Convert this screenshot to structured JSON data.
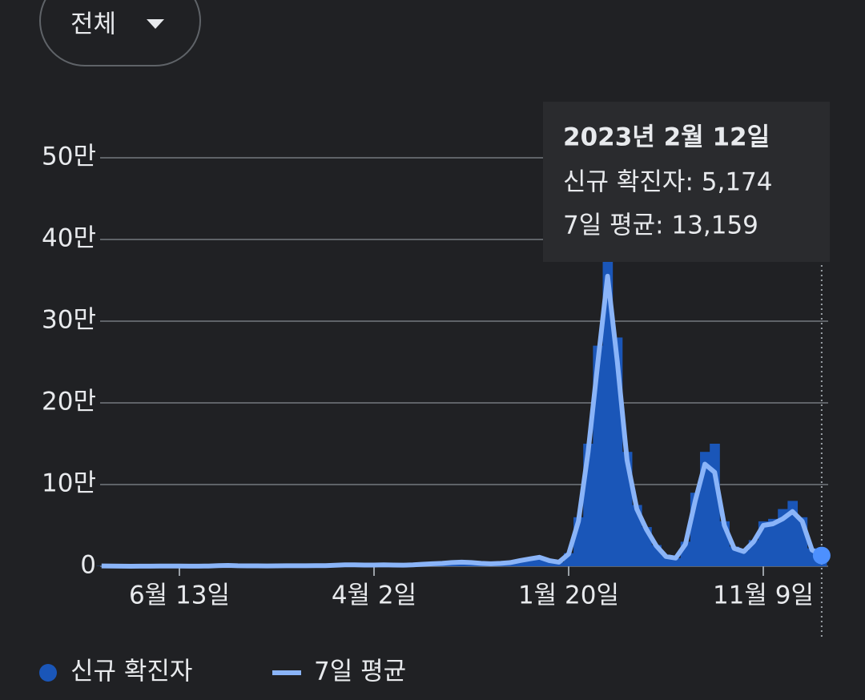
{
  "filter": {
    "label": "전체"
  },
  "chart_data": {
    "type": "bar-line",
    "categories": [
      null,
      null,
      null,
      null,
      null,
      null,
      null,
      null,
      "6월 13일",
      null,
      null,
      null,
      null,
      null,
      null,
      null,
      null,
      null,
      null,
      null,
      null,
      null,
      null,
      null,
      null,
      null,
      null,
      null,
      "4월 2일",
      null,
      null,
      null,
      null,
      null,
      null,
      null,
      null,
      null,
      null,
      null,
      null,
      null,
      null,
      null,
      null,
      null,
      null,
      null,
      "1월 20일",
      null,
      null,
      null,
      null,
      null,
      null,
      null,
      null,
      null,
      null,
      null,
      null,
      null,
      null,
      null,
      null,
      null,
      null,
      null,
      "11월 9일",
      null,
      null,
      null,
      null,
      null,
      null
    ],
    "series": [
      {
        "name": "신규 확진자",
        "color": "#1a56b8",
        "values": [
          400,
          200,
          60,
          40,
          50,
          50,
          200,
          300,
          150,
          100,
          100,
          300,
          700,
          1000,
          600,
          500,
          500,
          400,
          450,
          600,
          600,
          550,
          650,
          800,
          1200,
          1700,
          1800,
          1500,
          1500,
          1800,
          1500,
          1400,
          1700,
          2500,
          3000,
          3500,
          4500,
          5000,
          4500,
          3500,
          3000,
          3500,
          4500,
          7000,
          9000,
          11000,
          7000,
          5000,
          16000,
          60000,
          150000,
          270000,
          400000,
          280000,
          140000,
          75000,
          48000,
          26000,
          13000,
          10000,
          30000,
          90000,
          140000,
          150000,
          55000,
          24000,
          19000,
          32000,
          55000,
          58000,
          70000,
          80000,
          60000,
          22000,
          5174
        ]
      },
      {
        "name": "7일 평균",
        "color": "#8ab4f8",
        "values": [
          400,
          200,
          60,
          40,
          50,
          50,
          200,
          300,
          150,
          100,
          100,
          300,
          700,
          1000,
          600,
          500,
          500,
          400,
          450,
          600,
          600,
          550,
          650,
          800,
          1200,
          1700,
          1800,
          1500,
          1500,
          1800,
          1500,
          1400,
          1700,
          2500,
          3000,
          3500,
          4500,
          5000,
          4500,
          3500,
          3000,
          3500,
          4500,
          7000,
          9000,
          11000,
          7000,
          5000,
          15000,
          55000,
          140000,
          250000,
          355000,
          250000,
          130000,
          70000,
          45000,
          25000,
          12000,
          10000,
          27000,
          80000,
          125000,
          115000,
          50000,
          22000,
          18000,
          30000,
          50000,
          52000,
          58000,
          67000,
          55000,
          20000,
          13159
        ]
      }
    ],
    "ylim": [
      0,
      500000
    ],
    "yticks": [
      0,
      {
        "value": 100000,
        "label": "10만"
      },
      {
        "value": 200000,
        "label": "20만"
      },
      {
        "value": 300000,
        "label": "30만"
      },
      {
        "value": 400000,
        "label": "40만"
      },
      {
        "value": 500000,
        "label": "50만"
      }
    ],
    "grid": true,
    "tooltip": {
      "title": "2023년 2월 12일",
      "lines": [
        "신규 확진자: 5,174",
        "7일 평균: 13,159"
      ]
    }
  }
}
